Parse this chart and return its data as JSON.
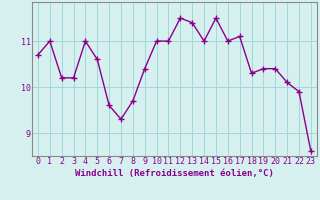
{
  "x": [
    0,
    1,
    2,
    3,
    4,
    5,
    6,
    7,
    8,
    9,
    10,
    11,
    12,
    13,
    14,
    15,
    16,
    17,
    18,
    19,
    20,
    21,
    22,
    23
  ],
  "y": [
    10.7,
    11.0,
    10.2,
    10.2,
    11.0,
    10.6,
    9.6,
    9.3,
    9.7,
    10.4,
    11.0,
    11.0,
    11.5,
    11.4,
    11.0,
    11.5,
    11.0,
    11.1,
    10.3,
    10.4,
    10.4,
    10.1,
    9.9,
    8.6
  ],
  "line_color": "#8b008b",
  "marker": "+",
  "marker_size": 4,
  "marker_lw": 1.0,
  "bg_color": "#d6f0f0",
  "grid_color": "#a0d8d8",
  "xlabel": "Windchill (Refroidissement éolien,°C)",
  "xlabel_fontsize": 6.5,
  "tick_fontsize": 6,
  "ylim": [
    8.5,
    11.85
  ],
  "yticks": [
    9,
    10,
    11
  ],
  "xticks": [
    0,
    1,
    2,
    3,
    4,
    5,
    6,
    7,
    8,
    9,
    10,
    11,
    12,
    13,
    14,
    15,
    16,
    17,
    18,
    19,
    20,
    21,
    22,
    23
  ],
  "spine_color": "#888888",
  "line_width": 1.0
}
